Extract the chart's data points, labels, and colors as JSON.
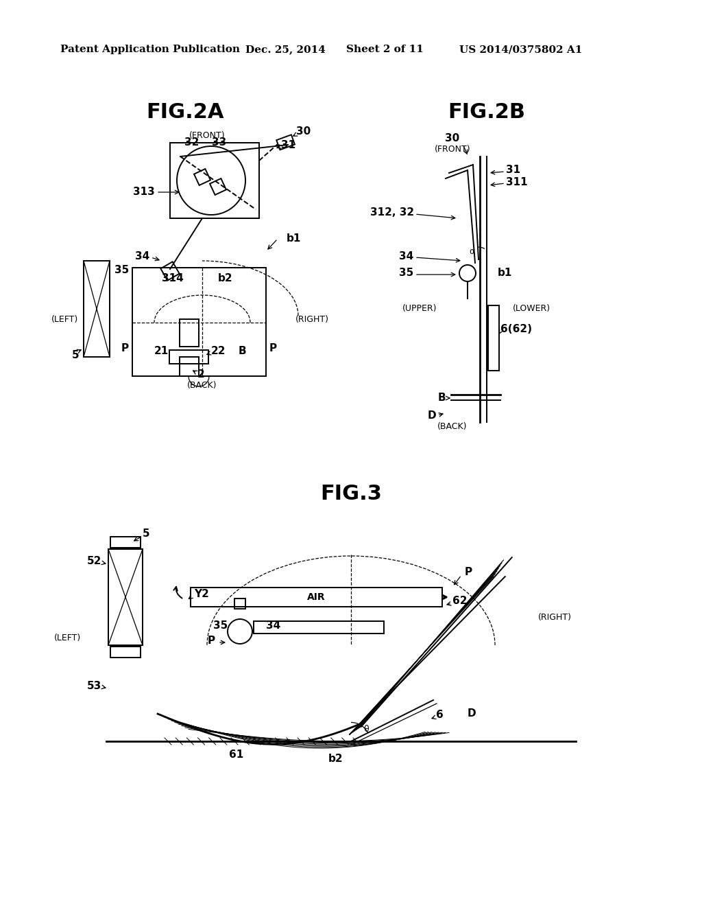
{
  "background_color": "#ffffff",
  "header_text": "Patent Application Publication",
  "header_date": "Dec. 25, 2014",
  "header_sheet": "Sheet 2 of 11",
  "header_patent": "US 2014/0375802 A1",
  "fig2a_title": "FIG.2A",
  "fig2b_title": "FIG.2B",
  "fig3_title": "FIG.3"
}
